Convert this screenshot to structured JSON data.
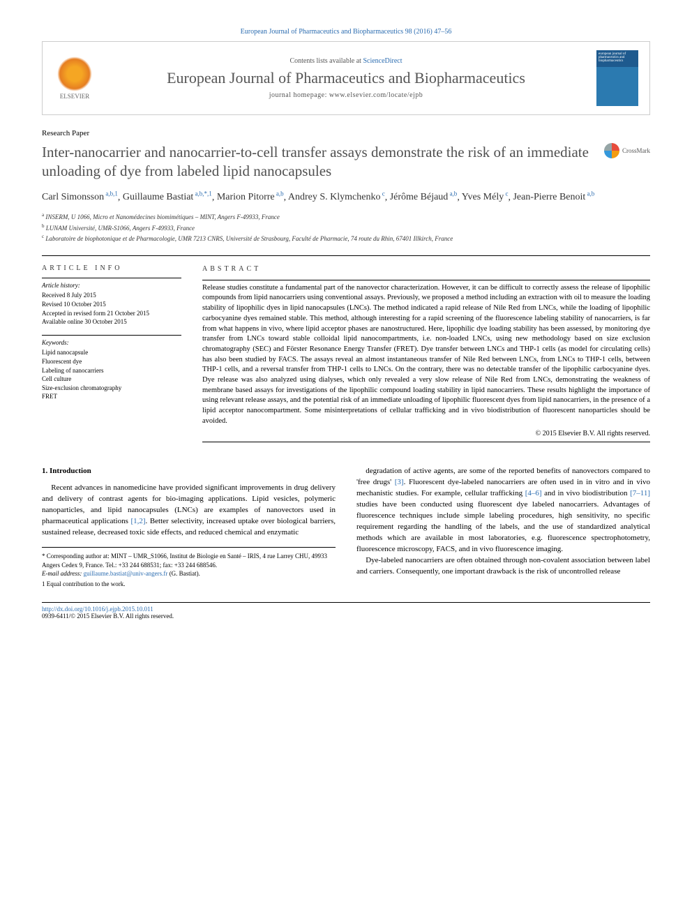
{
  "header": {
    "citation": "European Journal of Pharmaceutics and Biopharmaceutics 98 (2016) 47–56",
    "contents_text": "Contents lists available at ",
    "contents_link": "ScienceDirect",
    "journal_name": "European Journal of Pharmaceutics and Biopharmaceutics",
    "homepage_label": "journal homepage: www.elsevier.com/locate/ejpb",
    "elsevier_label": "ELSEVIER",
    "cover_text": "european journal of pharmaceutics and biopharmaceutics"
  },
  "article": {
    "type": "Research Paper",
    "title": "Inter-nanocarrier and nanocarrier-to-cell transfer assays demonstrate the risk of an immediate unloading of dye from labeled lipid nanocapsules",
    "crossmark": "CrossMark"
  },
  "authors": [
    {
      "name": "Carl Simonsson",
      "aff": "a,b,1"
    },
    {
      "name": "Guillaume Bastiat",
      "aff": "a,b,*,1"
    },
    {
      "name": "Marion Pitorre",
      "aff": "a,b"
    },
    {
      "name": "Andrey S. Klymchenko",
      "aff": "c"
    },
    {
      "name": "Jérôme Béjaud",
      "aff": "a,b"
    },
    {
      "name": "Yves Mély",
      "aff": "c"
    },
    {
      "name": "Jean-Pierre Benoit",
      "aff": "a,b"
    }
  ],
  "affiliations": [
    {
      "sup": "a",
      "text": "INSERM, U 1066, Micro et Nanomédecines biomimétiques – MINT, Angers F-49933, France"
    },
    {
      "sup": "b",
      "text": "LUNAM Université, UMR-S1066, Angers F-49933, France"
    },
    {
      "sup": "c",
      "text": "Laboratoire de biophotonique et de Pharmacologie, UMR 7213 CNRS, Université de Strasbourg, Faculté de Pharmacie, 74 route du Rhin, 67401 Illkirch, France"
    }
  ],
  "article_info": {
    "heading": "ARTICLE INFO",
    "history_label": "Article history:",
    "history": [
      "Received 8 July 2015",
      "Revised 10 October 2015",
      "Accepted in revised form 21 October 2015",
      "Available online 30 October 2015"
    ],
    "keywords_label": "Keywords:",
    "keywords": [
      "Lipid nanocapsule",
      "Fluorescent dye",
      "Labeling of nanocarriers",
      "Cell culture",
      "Size-exclusion chromatography",
      "FRET"
    ]
  },
  "abstract": {
    "heading": "ABSTRACT",
    "text": "Release studies constitute a fundamental part of the nanovector characterization. However, it can be difficult to correctly assess the release of lipophilic compounds from lipid nanocarriers using conventional assays. Previously, we proposed a method including an extraction with oil to measure the loading stability of lipophilic dyes in lipid nanocapsules (LNCs). The method indicated a rapid release of Nile Red from LNCs, while the loading of lipophilic carbocyanine dyes remained stable. This method, although interesting for a rapid screening of the fluorescence labeling stability of nanocarriers, is far from what happens in vivo, where lipid acceptor phases are nanostructured. Here, lipophilic dye loading stability has been assessed, by monitoring dye transfer from LNCs toward stable colloidal lipid nanocompartments, i.e. non-loaded LNCs, using new methodology based on size exclusion chromatography (SEC) and Förster Resonance Energy Transfer (FRET). Dye transfer between LNCs and THP-1 cells (as model for circulating cells) has also been studied by FACS. The assays reveal an almost instantaneous transfer of Nile Red between LNCs, from LNCs to THP-1 cells, between THP-1 cells, and a reversal transfer from THP-1 cells to LNCs. On the contrary, there was no detectable transfer of the lipophilic carbocyanine dyes. Dye release was also analyzed using dialyses, which only revealed a very slow release of Nile Red from LNCs, demonstrating the weakness of membrane based assays for investigations of the lipophilic compound loading stability in lipid nanocarriers. These results highlight the importance of using relevant release assays, and the potential risk of an immediate unloading of lipophilic fluorescent dyes from lipid nanocarriers, in the presence of a lipid acceptor nanocompartment. Some misinterpretations of cellular trafficking and in vivo biodistribution of fluorescent nanoparticles should be avoided.",
    "copyright": "© 2015 Elsevier B.V. All rights reserved."
  },
  "body": {
    "section_number": "1.",
    "section_title": "Introduction",
    "col1_p1": "Recent advances in nanomedicine have provided significant improvements in drug delivery and delivery of contrast agents for bio-imaging applications. Lipid vesicles, polymeric nanoparticles, and lipid nanocapsules (LNCs) are examples of nanovectors used in pharmaceutical applications [1,2]. Better selectivity, increased uptake over biological barriers, sustained release, decreased toxic side effects, and reduced chemical and enzymatic",
    "col2_p1": "degradation of active agents, are some of the reported benefits of nanovectors compared to 'free drugs' [3]. Fluorescent dye-labeled nanocarriers are often used in in vitro and in vivo mechanistic studies. For example, cellular trafficking [4–6] and in vivo biodistribution [7–11] studies have been conducted using fluorescent dye labeled nanocarriers. Advantages of fluorescence techniques include simple labeling procedures, high sensitivity, no specific requirement regarding the handling of the labels, and the use of standardized analytical methods which are available in most laboratories, e.g. fluorescence spectrophotometry, fluorescence microscopy, FACS, and in vivo fluorescence imaging.",
    "col2_p2": "Dye-labeled nanocarriers are often obtained through non-covalent association between label and carriers. Consequently, one important drawback is the risk of uncontrolled release",
    "ref_12": "[1,2]",
    "ref_3": "[3]",
    "ref_46": "[4–6]",
    "ref_711": "[7–11]"
  },
  "footnotes": {
    "corresponding": "* Corresponding author at: MINT – UMR_S1066, Institut de Biologie en Santé – IRIS, 4 rue Larrey CHU, 49933 Angers Cedex 9, France. Tel.: +33 244 688531; fax: +33 244 688546.",
    "email_label": "E-mail address: ",
    "email": "guillaume.bastiat@univ-angers.fr",
    "email_who": " (G. Bastiat).",
    "equal": "1 Equal contribution to the work."
  },
  "doi": {
    "url": "http://dx.doi.org/10.1016/j.ejpb.2015.10.011",
    "issn_line": "0939-6411/© 2015 Elsevier B.V. All rights reserved."
  },
  "colors": {
    "link": "#2b6cb0",
    "title_gray": "#505050",
    "text": "#000000"
  }
}
